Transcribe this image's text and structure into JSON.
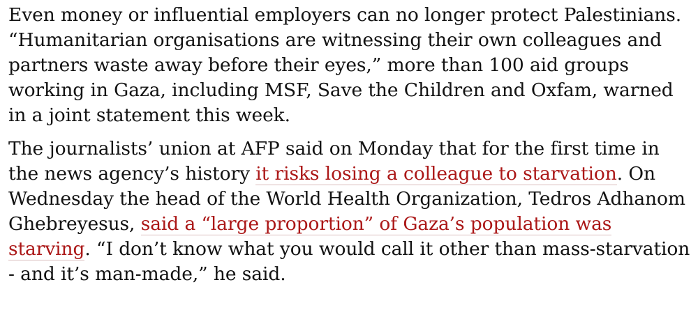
{
  "article": {
    "paragraphs": [
      {
        "segments": [
          {
            "text": "Even money or influential employers can no longer protect Palestinians. “Humanitarian organisations are witnessing their own colleagues and partners waste away before their eyes,” more than 100 aid groups working in Gaza, including MSF, Save the Children and Oxfam, warned in a joint statement this week."
          }
        ]
      },
      {
        "segments": [
          {
            "text": "The journalists’ union at AFP said on Monday that for the first time in the news agency’s history "
          },
          {
            "text": "it risks losing a colleague to starvation",
            "link": true
          },
          {
            "text": ". On Wednesday the head of the World Health Organization, Tedros Adhanom Ghebreyesus, "
          },
          {
            "text": "said a “large proportion” of Gaza’s population was starving",
            "link": true
          },
          {
            "text": ". “I don’t know what you would call it other than mass-starvation - and it’s man-made,” he said."
          }
        ]
      }
    ],
    "link_color": "#ab1717",
    "text_color": "#121212"
  }
}
